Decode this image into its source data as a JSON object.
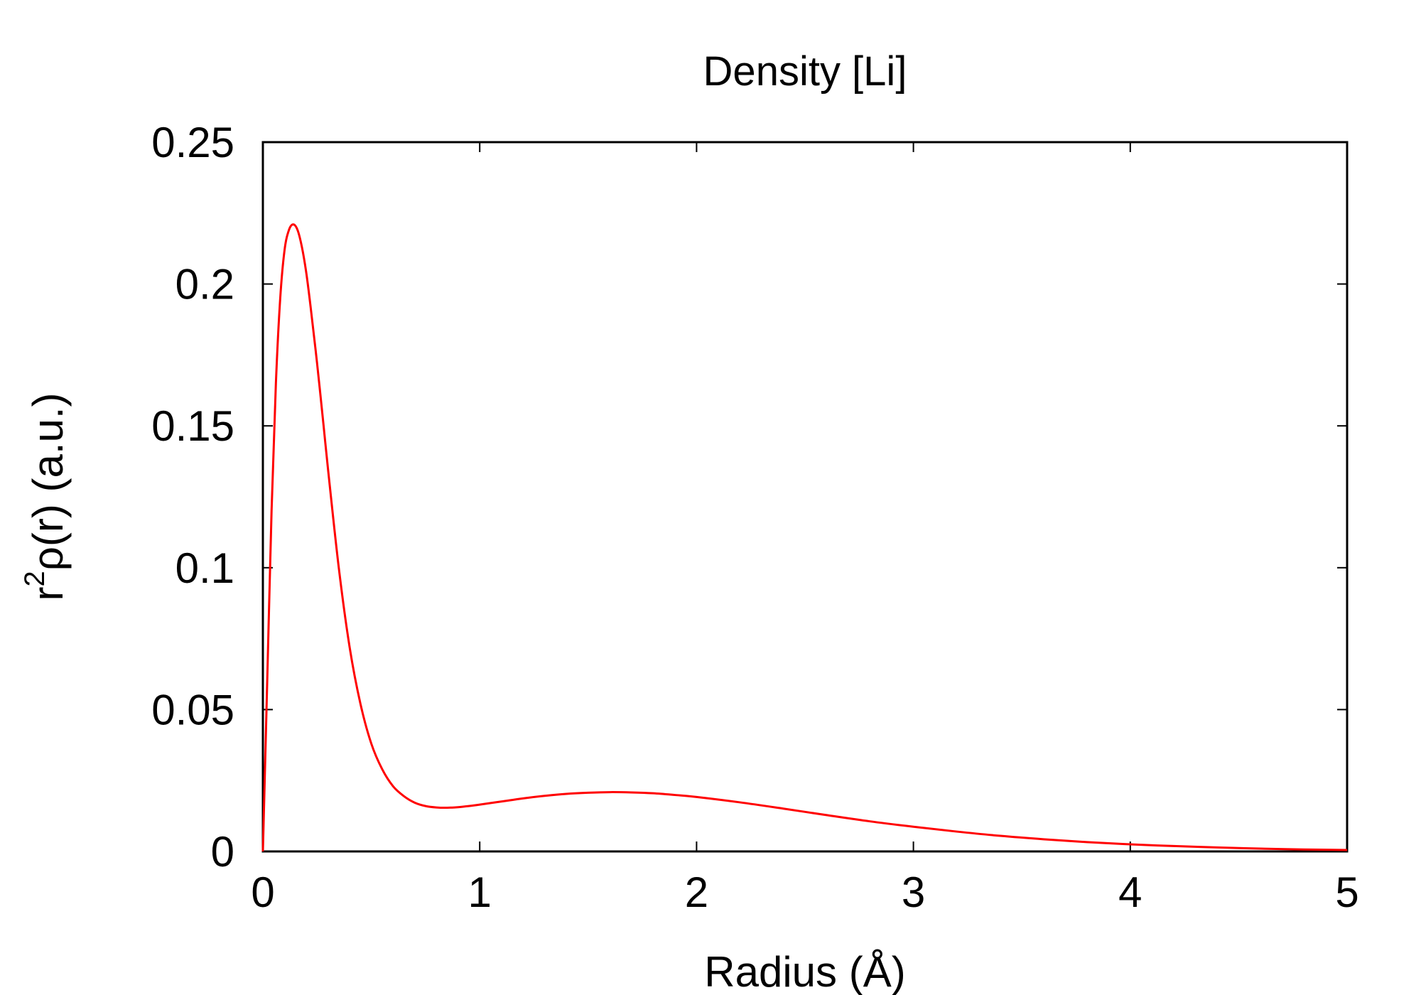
{
  "chart_data": {
    "type": "line",
    "title": "Density [Li]",
    "xlabel": "Radius (Å)",
    "ylabel": {
      "base": "r",
      "superscript": "2",
      "rest": "ρ(r) (a.u.)"
    },
    "xlim": [
      0,
      5
    ],
    "ylim": [
      0,
      0.25
    ],
    "xticks": [
      "0",
      "1",
      "2",
      "3",
      "4",
      "5"
    ],
    "yticks": [
      "0",
      "0.05",
      "0.1",
      "0.15",
      "0.2",
      "0.25"
    ],
    "grid": false,
    "series": [
      {
        "color": "#ff0000",
        "x": [
          0,
          0.02,
          0.04,
          0.06,
          0.08,
          0.1,
          0.12,
          0.14,
          0.16,
          0.18,
          0.2,
          0.22,
          0.25,
          0.28,
          0.3,
          0.35,
          0.4,
          0.45,
          0.5,
          0.55,
          0.6,
          0.65,
          0.7,
          0.75,
          0.8,
          0.85,
          0.9,
          0.95,
          1.0,
          1.1,
          1.2,
          1.3,
          1.4,
          1.5,
          1.6,
          1.7,
          1.8,
          1.9,
          2.0,
          2.2,
          2.4,
          2.6,
          2.8,
          3.0,
          3.2,
          3.4,
          3.6,
          3.8,
          4.0,
          4.2,
          4.4,
          4.6,
          4.8,
          5.0
        ],
        "y": [
          0,
          0.06,
          0.12,
          0.165,
          0.195,
          0.212,
          0.219,
          0.221,
          0.219,
          0.213,
          0.204,
          0.192,
          0.172,
          0.15,
          0.135,
          0.1,
          0.072,
          0.052,
          0.038,
          0.029,
          0.023,
          0.0195,
          0.0172,
          0.016,
          0.0155,
          0.0154,
          0.0156,
          0.016,
          0.0165,
          0.0176,
          0.0187,
          0.0196,
          0.0203,
          0.0207,
          0.0209,
          0.0208,
          0.0205,
          0.0199,
          0.0192,
          0.0173,
          0.0151,
          0.0128,
          0.0106,
          0.0087,
          0.007,
          0.0055,
          0.0043,
          0.0033,
          0.0025,
          0.0019,
          0.0014,
          0.001,
          0.0007,
          0.0005
        ]
      }
    ]
  }
}
